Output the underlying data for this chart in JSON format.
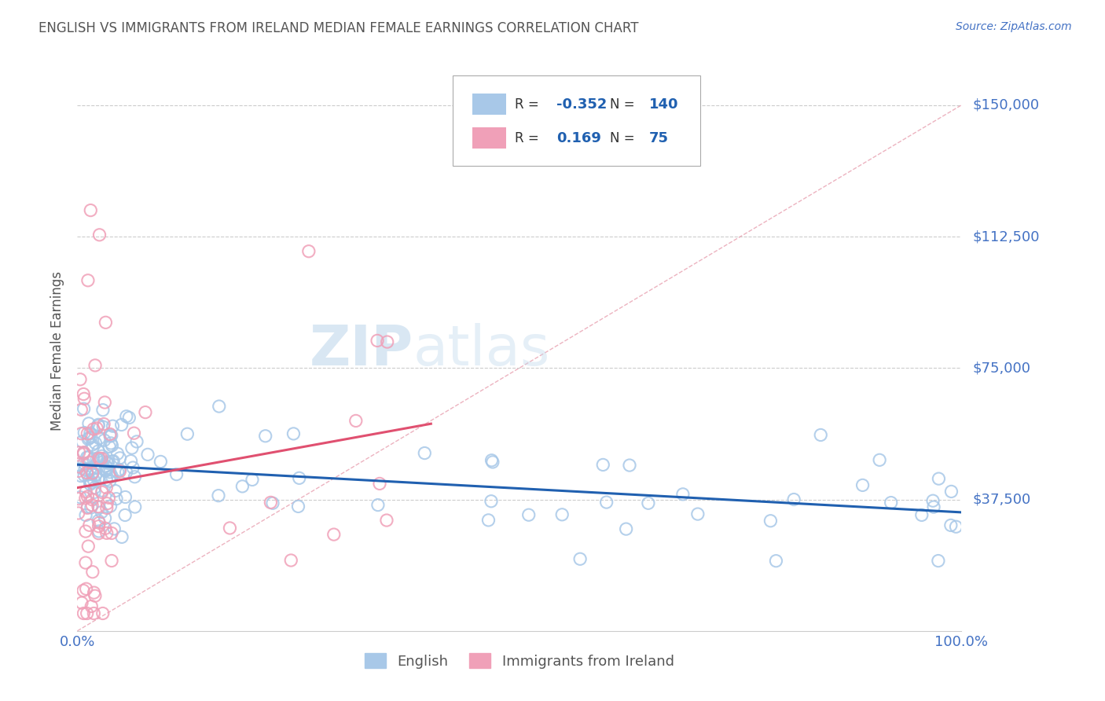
{
  "title": "ENGLISH VS IMMIGRANTS FROM IRELAND MEDIAN FEMALE EARNINGS CORRELATION CHART",
  "source": "Source: ZipAtlas.com",
  "ylabel": "Median Female Earnings",
  "xlim": [
    0.0,
    1.0
  ],
  "ylim": [
    0,
    160000
  ],
  "title_color": "#555555",
  "source_color": "#4472c4",
  "ytick_color": "#4472c4",
  "xtick_color": "#4472c4",
  "ylabel_color": "#555555",
  "blue_color": "#a8c8e8",
  "pink_color": "#f0a0b8",
  "blue_line_color": "#2060b0",
  "pink_line_color": "#e05070",
  "diag_line_color": "#e8a0b0",
  "watermark_color": "#c8dff0",
  "legend_blue_r": "-0.352",
  "legend_blue_n": "140",
  "legend_pink_r": "0.169",
  "legend_pink_n": "75",
  "r_label_color": "#2060b0",
  "n_label_color": "#2060b0",
  "rn_text_color": "#333333"
}
